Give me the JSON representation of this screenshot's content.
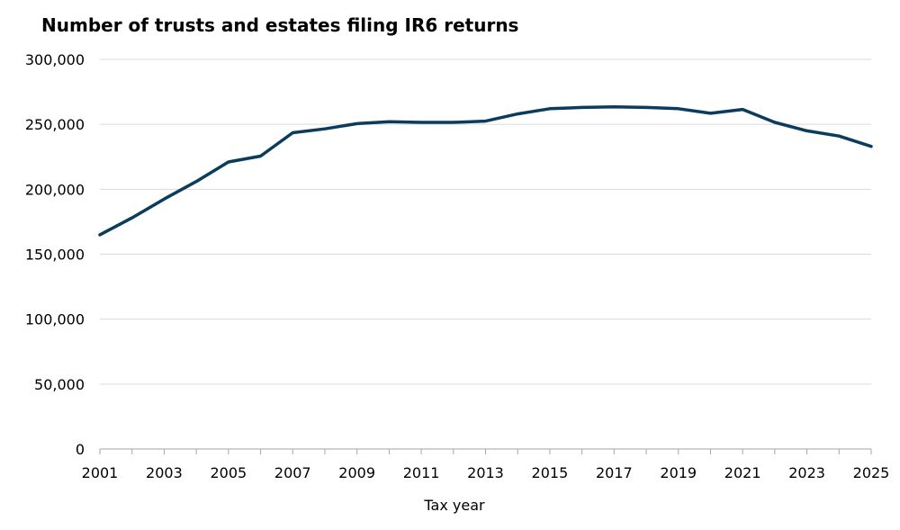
{
  "chart_data": {
    "type": "line",
    "title": "Number of trusts and estates filing IR6 returns",
    "xlabel": "Tax year",
    "ylabel": "",
    "x": [
      2001,
      2002,
      2003,
      2004,
      2005,
      2006,
      2007,
      2008,
      2009,
      2010,
      2011,
      2012,
      2013,
      2014,
      2015,
      2016,
      2017,
      2018,
      2019,
      2020,
      2021,
      2022,
      2023,
      2024,
      2025
    ],
    "series": [
      {
        "values": [
          165000,
          178000,
          192500,
          206000,
          221000,
          225500,
          243500,
          246500,
          250500,
          252000,
          251500,
          251500,
          252500,
          258000,
          262000,
          263000,
          263500,
          263000,
          262000,
          258500,
          261500,
          251500,
          245000,
          241000,
          233000
        ]
      }
    ],
    "xlim": [
      2001,
      2025
    ],
    "ylim": [
      0,
      300000
    ],
    "yticks": [
      "0",
      "50,000",
      "100,000",
      "150,000",
      "200,000",
      "250,000",
      "300,000"
    ],
    "ytick_values": [
      0,
      50000,
      100000,
      150000,
      200000,
      250000,
      300000
    ],
    "xticks": [
      "2001",
      "2003",
      "2005",
      "2007",
      "2009",
      "2011",
      "2013",
      "2015",
      "2017",
      "2019",
      "2021",
      "2023",
      "2025"
    ],
    "xtick_values": [
      2001,
      2003,
      2005,
      2007,
      2009,
      2011,
      2013,
      2015,
      2017,
      2019,
      2021,
      2023,
      2025
    ],
    "grid": "horizontal",
    "line_color": "#0b3c5d",
    "grid_color": "#d9d9d9"
  }
}
